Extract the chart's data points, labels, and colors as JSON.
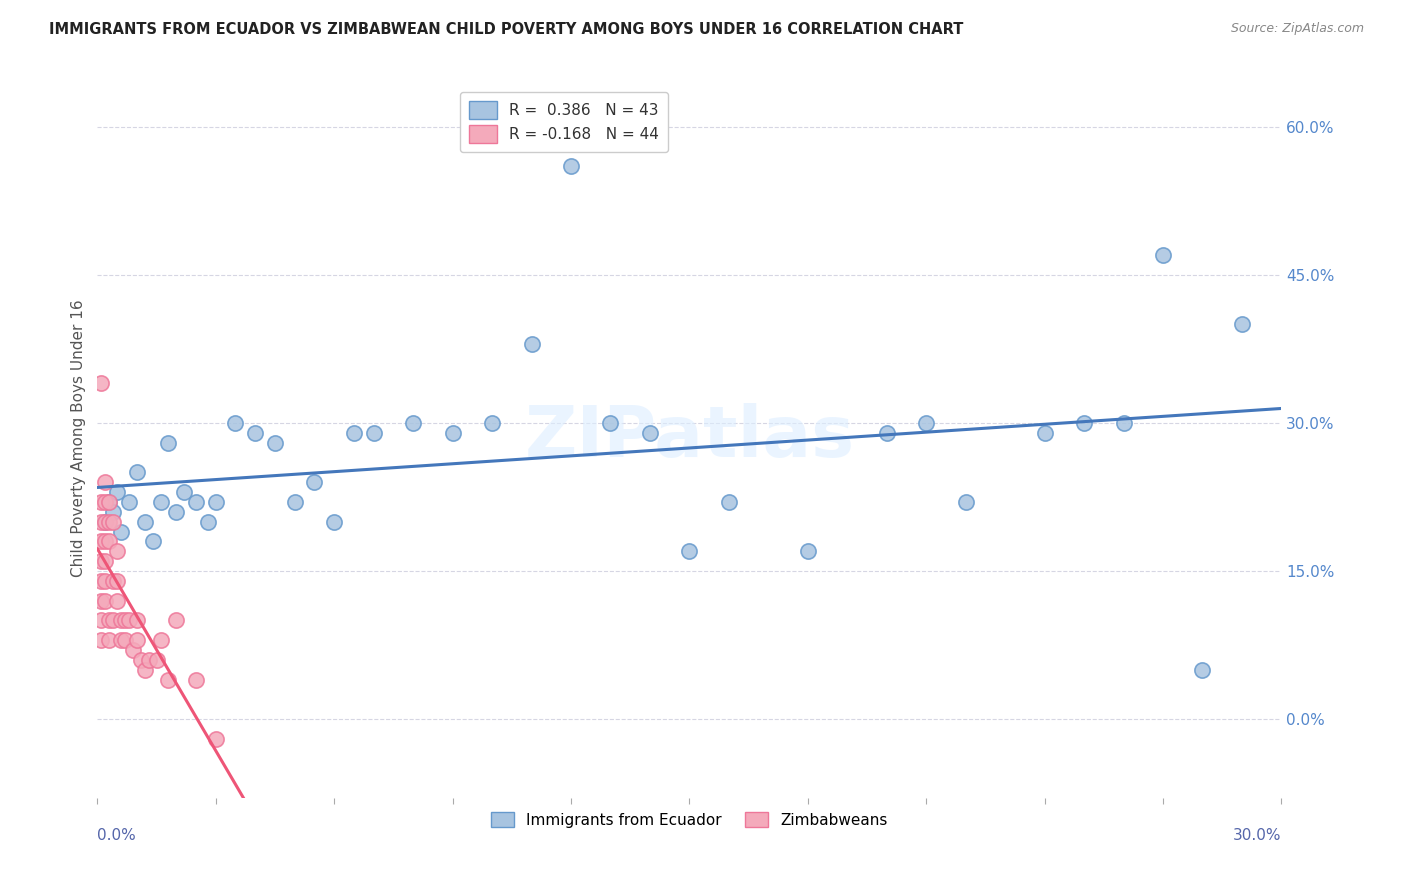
{
  "title": "IMMIGRANTS FROM ECUADOR VS ZIMBABWEAN CHILD POVERTY AMONG BOYS UNDER 16 CORRELATION CHART",
  "source": "Source: ZipAtlas.com",
  "ylabel": "Child Poverty Among Boys Under 16",
  "xlim": [
    0.0,
    0.3
  ],
  "ylim": [
    -0.08,
    0.65
  ],
  "color_blue": "#A8C4E0",
  "color_blue_edge": "#6699CC",
  "color_pink": "#F4AABB",
  "color_pink_edge": "#EE7799",
  "color_blue_line": "#4477BB",
  "color_pink_line": "#EE5577",
  "watermark": "ZIPatlas",
  "ecuador_x": [
    0.002,
    0.003,
    0.004,
    0.005,
    0.006,
    0.008,
    0.01,
    0.012,
    0.014,
    0.016,
    0.018,
    0.02,
    0.022,
    0.025,
    0.028,
    0.03,
    0.035,
    0.04,
    0.045,
    0.05,
    0.055,
    0.06,
    0.065,
    0.07,
    0.08,
    0.09,
    0.1,
    0.11,
    0.12,
    0.13,
    0.14,
    0.15,
    0.16,
    0.18,
    0.2,
    0.21,
    0.22,
    0.24,
    0.25,
    0.26,
    0.27,
    0.28,
    0.29
  ],
  "ecuador_y": [
    0.2,
    0.22,
    0.21,
    0.23,
    0.19,
    0.22,
    0.25,
    0.2,
    0.18,
    0.22,
    0.28,
    0.21,
    0.23,
    0.22,
    0.2,
    0.22,
    0.3,
    0.29,
    0.28,
    0.22,
    0.24,
    0.2,
    0.29,
    0.29,
    0.3,
    0.29,
    0.3,
    0.38,
    0.56,
    0.3,
    0.29,
    0.17,
    0.22,
    0.17,
    0.29,
    0.3,
    0.22,
    0.29,
    0.3,
    0.3,
    0.47,
    0.05,
    0.4
  ],
  "zimbabwe_x": [
    0.001,
    0.001,
    0.001,
    0.001,
    0.001,
    0.001,
    0.001,
    0.001,
    0.001,
    0.002,
    0.002,
    0.002,
    0.002,
    0.002,
    0.002,
    0.002,
    0.003,
    0.003,
    0.003,
    0.003,
    0.003,
    0.004,
    0.004,
    0.004,
    0.005,
    0.005,
    0.005,
    0.006,
    0.006,
    0.007,
    0.007,
    0.008,
    0.009,
    0.01,
    0.01,
    0.011,
    0.012,
    0.013,
    0.015,
    0.016,
    0.018,
    0.02,
    0.025,
    0.03
  ],
  "zimbabwe_y": [
    0.34,
    0.22,
    0.2,
    0.18,
    0.16,
    0.14,
    0.12,
    0.1,
    0.08,
    0.24,
    0.22,
    0.2,
    0.18,
    0.16,
    0.14,
    0.12,
    0.22,
    0.2,
    0.18,
    0.1,
    0.08,
    0.2,
    0.14,
    0.1,
    0.17,
    0.14,
    0.12,
    0.1,
    0.08,
    0.1,
    0.08,
    0.1,
    0.07,
    0.1,
    0.08,
    0.06,
    0.05,
    0.06,
    0.06,
    0.08,
    0.04,
    0.1,
    0.04,
    -0.02
  ]
}
